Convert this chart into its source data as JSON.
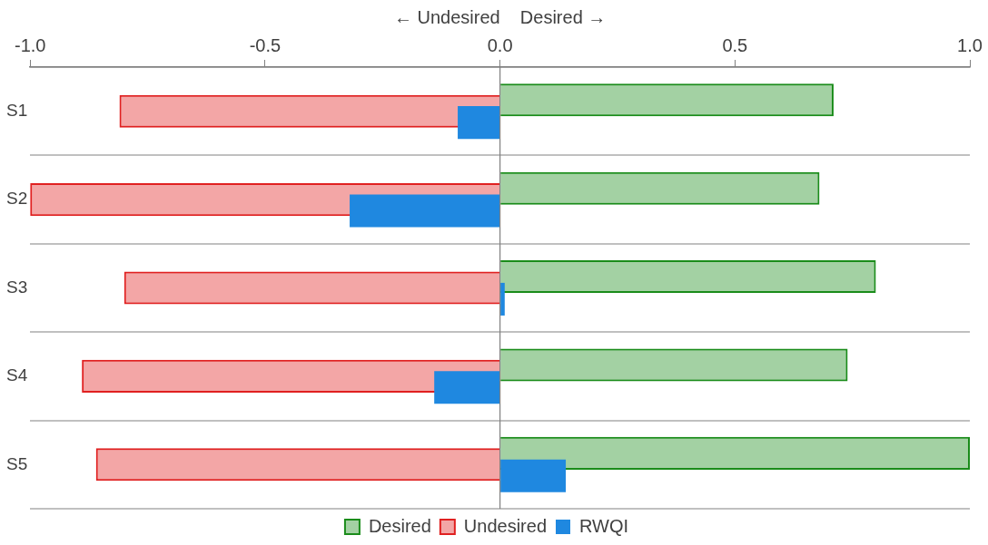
{
  "chart_data": {
    "type": "bar",
    "orientation": "horizontal",
    "xlabel": "← Undesired    Desired →",
    "categories": [
      "S1",
      "S2",
      "S3",
      "S4",
      "S5"
    ],
    "series": [
      {
        "name": "Desired",
        "color": "#1a8c1a",
        "values": [
          0.71,
          0.68,
          0.8,
          0.74,
          1.0
        ]
      },
      {
        "name": "Undesired",
        "color": "#e02020",
        "values": [
          -0.81,
          -1.0,
          -0.8,
          -0.89,
          -0.86
        ]
      },
      {
        "name": "RWQI",
        "color": "#1f88e0",
        "values": [
          -0.09,
          -0.32,
          0.01,
          -0.14,
          0.14
        ]
      }
    ],
    "xlim": [
      -1.0,
      1.0
    ],
    "xticks": [
      {
        "value": -1.0,
        "label": "-1.0"
      },
      {
        "value": -0.5,
        "label": "-0.5"
      },
      {
        "value": 0,
        "label": "0.0"
      },
      {
        "value": 0.5,
        "label": "0.5"
      },
      {
        "value": 1.0,
        "label": "1.0"
      }
    ],
    "ref_lines": [
      {
        "axis": "x",
        "value": 0,
        "color": "#808080"
      }
    ],
    "grid": "y",
    "legend": "bottom"
  }
}
